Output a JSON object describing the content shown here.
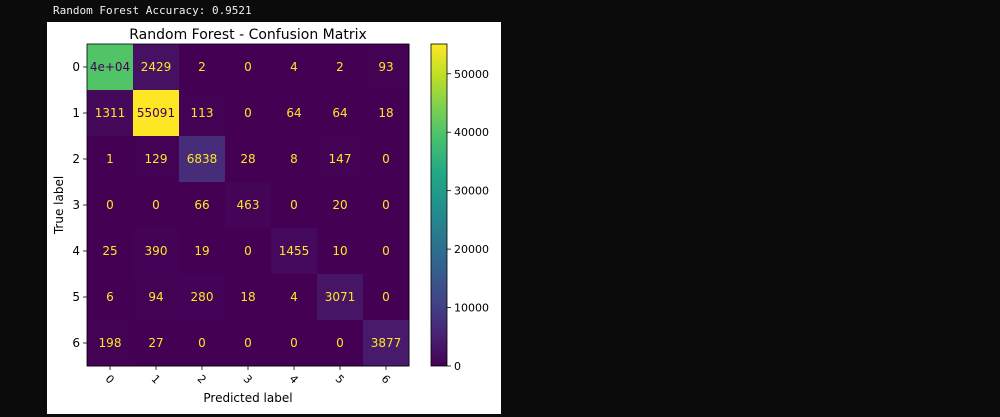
{
  "output": {
    "accuracy_line": "Random Forest Accuracy: 0.9521"
  },
  "chart_data": {
    "type": "heatmap",
    "title": "Random Forest - Confusion Matrix",
    "xlabel": "Predicted label",
    "ylabel": "True label",
    "x_categories": [
      "0",
      "1",
      "2",
      "3",
      "4",
      "5",
      "6"
    ],
    "y_categories": [
      "0",
      "1",
      "2",
      "3",
      "4",
      "5",
      "6"
    ],
    "values": [
      [
        40000,
        2429,
        2,
        0,
        4,
        2,
        93
      ],
      [
        1311,
        55091,
        113,
        0,
        64,
        64,
        18
      ],
      [
        1,
        129,
        6838,
        28,
        8,
        147,
        0
      ],
      [
        0,
        0,
        66,
        463,
        0,
        20,
        0
      ],
      [
        25,
        390,
        19,
        0,
        1455,
        10,
        0
      ],
      [
        6,
        94,
        280,
        18,
        4,
        3071,
        0
      ],
      [
        198,
        27,
        0,
        0,
        0,
        0,
        3877
      ]
    ],
    "cell_labels": [
      [
        "4e+04",
        "2429",
        "2",
        "0",
        "4",
        "2",
        "93"
      ],
      [
        "1311",
        "55091",
        "113",
        "0",
        "64",
        "64",
        "18"
      ],
      [
        "1",
        "129",
        "6838",
        "28",
        "8",
        "147",
        "0"
      ],
      [
        "0",
        "0",
        "66",
        "463",
        "0",
        "20",
        "0"
      ],
      [
        "25",
        "390",
        "19",
        "0",
        "1455",
        "10",
        "0"
      ],
      [
        "6",
        "94",
        "280",
        "18",
        "4",
        "3071",
        "0"
      ],
      [
        "198",
        "27",
        "0",
        "0",
        "0",
        "0",
        "3877"
      ]
    ],
    "colormap": "viridis",
    "colorbar": {
      "range": [
        0,
        55091
      ],
      "ticks": [
        0,
        10000,
        20000,
        30000,
        40000,
        50000
      ],
      "tick_labels": [
        "0",
        "10000",
        "20000",
        "30000",
        "40000",
        "50000"
      ]
    },
    "x_tick_rotation": 45,
    "text_colors": {
      "dark_cell": "#fde725",
      "light_cell": "#440154"
    }
  }
}
